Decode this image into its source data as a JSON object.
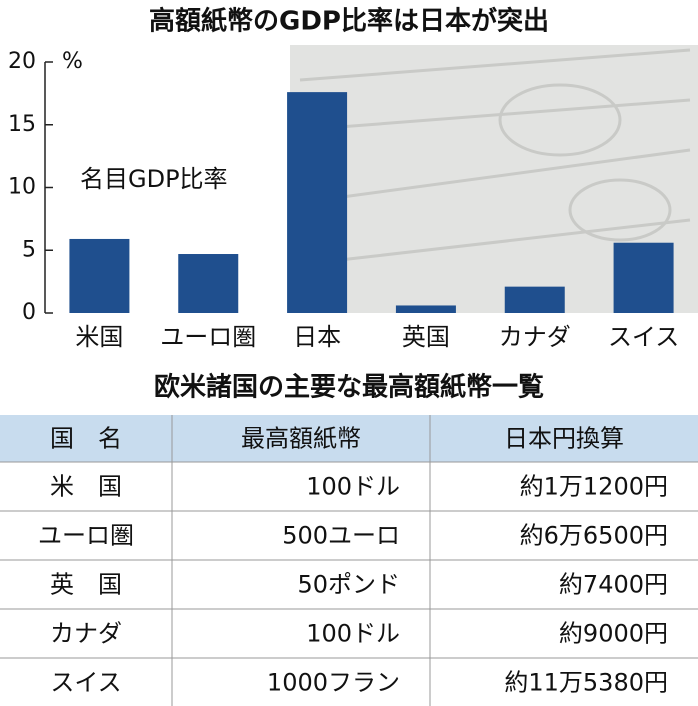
{
  "chart_data": {
    "type": "bar",
    "title": "高額紙幣のGDP比率は日本が突出",
    "y_label": "%",
    "annotation": "名目GDP比率",
    "categories": [
      "米国",
      "ユーロ圏",
      "日本",
      "英国",
      "カナダ",
      "スイス"
    ],
    "values": [
      5.9,
      4.7,
      17.6,
      0.6,
      2.1,
      5.6
    ],
    "color": "#1f4f8e",
    "ylim": [
      0,
      20
    ],
    "yticks": [
      0,
      5,
      10,
      15,
      20
    ]
  },
  "table": {
    "title": "欧米諸国の主要な最高額紙幣一覧",
    "header": [
      "国　名",
      "最高額紙幣",
      "日本円換算"
    ],
    "rows": [
      [
        "米　国",
        "100ドル",
        "約1万1200円"
      ],
      [
        "ユーロ圏",
        "500ユーロ",
        "約6万6500円"
      ],
      [
        "英　国",
        "50ポンド",
        "約7400円"
      ],
      [
        "カナダ",
        "100ドル",
        "約9000円"
      ],
      [
        "スイス",
        "1000フラン",
        "約11万5380円"
      ]
    ]
  }
}
